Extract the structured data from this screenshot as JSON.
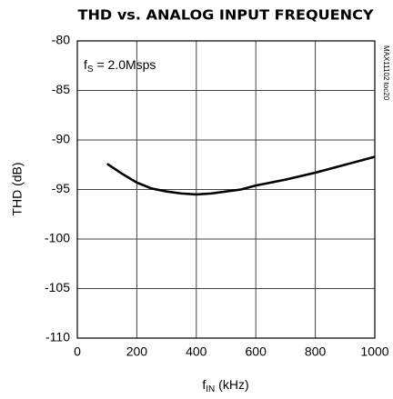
{
  "chart_data": {
    "type": "line",
    "title": "THD vs. ANALOG INPUT FREQUENCY",
    "annotation": {
      "main": "f",
      "sub": "S",
      "rest": " = 2.0Msps"
    },
    "side_note": "MAX11102 toc20",
    "xlabel": {
      "main": "f",
      "sub": "IN",
      "rest": " (kHz)"
    },
    "ylabel": "THD (dB)",
    "x": [
      100,
      150,
      200,
      250,
      300,
      350,
      400,
      450,
      500,
      550,
      600,
      700,
      800,
      900,
      1000
    ],
    "series": [
      {
        "color": "#000000",
        "values": [
          -92.4,
          -93.4,
          -94.3,
          -94.9,
          -95.2,
          -95.4,
          -95.5,
          -95.4,
          -95.2,
          -95.0,
          -94.6,
          -94.0,
          -93.3,
          -92.5,
          -91.7
        ]
      }
    ],
    "xlim": [
      0,
      1000
    ],
    "xticks": [
      0,
      200,
      400,
      600,
      800,
      1000
    ],
    "ylim": [
      -110,
      -80
    ],
    "yticks": [
      -110,
      -105,
      -100,
      -95,
      -90,
      -85,
      -80
    ],
    "grid": true
  }
}
